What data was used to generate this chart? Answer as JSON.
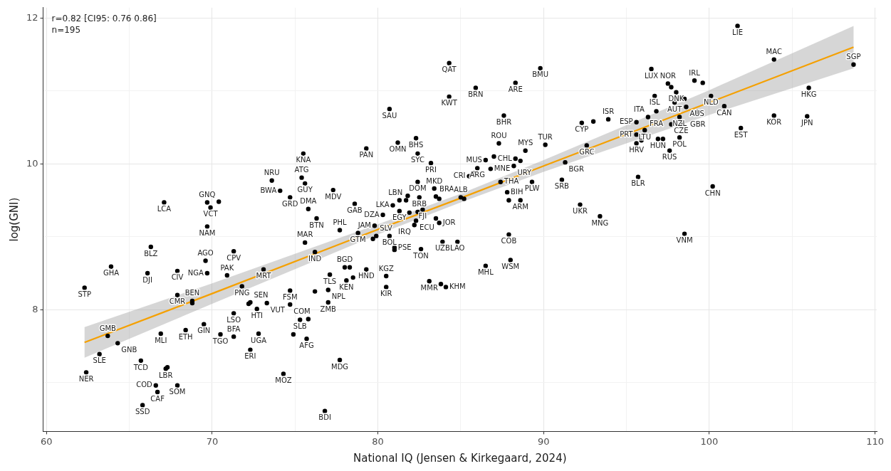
{
  "chart_data": {
    "type": "scatter",
    "xlabel": "National IQ (Jensen & Kirkegaard, 2024)",
    "ylabel": "log(GNI)",
    "annotations": [
      "r=0.82 [CI95: 0.76 0.86]",
      "n=195"
    ],
    "xlim": [
      59.8,
      110.1
    ],
    "ylim": [
      6.33,
      12.14
    ],
    "xticks": [
      60,
      {
        "value": 65,
        "label": null
      },
      70,
      {
        "value": 75,
        "label": null
      },
      80,
      {
        "value": 85,
        "label": null
      },
      90,
      {
        "value": 95,
        "label": null
      },
      100,
      {
        "value": 105,
        "label": null
      },
      110
    ],
    "yticks": [
      {
        "value": 7,
        "label": null
      },
      8,
      {
        "value": 9,
        "label": null
      },
      10,
      {
        "value": 11,
        "label": null
      },
      12
    ],
    "grid": true,
    "series": [
      {
        "marker": "circle",
        "color": "#000000",
        "x": [
          75.5,
          73.6,
          75.4,
          75.6,
          74.1,
          74.7,
          67.1,
          69.7,
          69.9,
          70.4,
          75.8,
          76.3,
          77.3,
          78.6,
          79.3,
          80.7,
          81.2,
          82.3,
          82.4,
          83.2,
          84.3,
          84.3,
          85.9,
          88.3,
          89.8,
          87.6,
          92.3,
          93.0,
          87.3,
          87.0,
          86.5,
          86.0,
          85.8,
          85.5,
          86.8,
          88.3,
          88.6,
          88.2,
          88.9,
          90.1,
          92.6,
          91.3,
          91.1,
          89.3,
          87.4,
          87.8,
          87.9,
          88.6,
          92.2,
          93.4,
          82.4,
          83.4,
          83.5,
          83.7,
          82.5,
          81.7,
          81.8,
          81.3,
          80.9,
          81.3,
          81.9,
          82.4,
          82.7,
          82.3,
          82.2,
          80.3,
          83.7,
          83.5,
          85.0,
          85.2,
          79.8,
          77.7,
          101.7,
          103.9,
          108.7,
          106.0,
          103.9,
          105.9,
          101.9,
          100.9,
          100.1,
          96.5,
          97.5,
          97.7,
          99.1,
          99.6,
          98.0,
          96.7,
          97.9,
          98.1,
          98.3,
          98.5,
          98.6,
          99.3,
          96.8,
          96.3,
          95.6,
          98.2,
          97.7,
          98.3,
          96.1,
          95.6,
          95.9,
          95.6,
          96.9,
          97.2,
          98.2,
          97.6,
          95.7,
          100.2,
          93.9,
          98.5,
          87.9,
          78.8,
          79.9,
          79.7,
          80.7,
          81.0,
          81.0,
          82.6,
          83.9,
          84.8,
          88.0,
          86.5,
          78.0,
          78.3,
          79.3,
          77.1,
          78.1,
          78.5,
          80.5,
          80.5,
          83.1,
          83.8,
          84.1,
          77.0,
          77.0,
          77.7,
          76.8,
          69.7,
          66.3,
          71.3,
          75.6,
          76.2,
          69.6,
          63.9,
          66.1,
          67.9,
          69.7,
          70.9,
          73.1,
          62.3,
          71.8,
          74.7,
          76.2,
          67.9,
          68.8,
          68.8,
          72.3,
          72.2,
          72.7,
          73.3,
          74.7,
          71.3,
          75.3,
          75.8,
          69.5,
          63.7,
          64.3,
          66.9,
          68.4,
          70.5,
          71.3,
          72.8,
          74.9,
          75.7,
          72.3,
          63.2,
          65.7,
          67.2,
          67.3,
          62.4,
          74.3,
          66.6,
          66.7,
          67.9,
          65.8
        ],
        "values": [
          10.14,
          9.77,
          9.81,
          9.73,
          9.63,
          9.54,
          9.47,
          9.47,
          9.4,
          9.48,
          9.38,
          9.25,
          9.64,
          9.45,
          10.21,
          10.75,
          10.29,
          10.35,
          10.14,
          10.01,
          11.38,
          10.92,
          11.04,
          11.11,
          11.31,
          10.66,
          10.56,
          10.58,
          10.28,
          10.1,
          10.05,
          9.94,
          9.87,
          9.83,
          9.93,
          10.07,
          10.04,
          9.97,
          10.18,
          10.26,
          10.25,
          10.02,
          9.78,
          9.75,
          9.75,
          9.61,
          9.5,
          9.5,
          9.44,
          9.28,
          9.75,
          9.66,
          9.55,
          9.52,
          9.54,
          9.5,
          9.56,
          9.5,
          9.43,
          9.35,
          9.33,
          9.34,
          9.37,
          9.22,
          9.16,
          9.3,
          9.19,
          9.25,
          9.54,
          9.52,
          9.15,
          9.09,
          11.89,
          11.43,
          11.36,
          11.04,
          10.66,
          10.65,
          10.49,
          10.79,
          10.93,
          11.3,
          11.1,
          11.05,
          11.14,
          11.11,
          10.98,
          10.93,
          10.84,
          10.89,
          10.91,
          10.89,
          10.78,
          10.71,
          10.72,
          10.64,
          10.57,
          10.64,
          10.54,
          10.54,
          10.46,
          10.4,
          10.32,
          10.28,
          10.34,
          10.34,
          10.36,
          10.18,
          9.82,
          9.69,
          10.61,
          9.04,
          9.03,
          9.05,
          9.01,
          8.97,
          9.01,
          8.85,
          8.82,
          8.83,
          8.93,
          8.93,
          8.68,
          8.6,
          8.58,
          8.58,
          8.55,
          8.48,
          8.4,
          8.44,
          8.46,
          8.31,
          8.39,
          8.35,
          8.31,
          8.27,
          8.1,
          7.31,
          6.61,
          9.14,
          8.86,
          8.8,
          8.92,
          8.79,
          8.67,
          8.59,
          8.5,
          8.53,
          8.5,
          8.47,
          8.55,
          8.3,
          8.32,
          8.26,
          8.25,
          8.2,
          8.12,
          8.09,
          8.1,
          8.08,
          8.01,
          8.09,
          8.07,
          7.95,
          7.86,
          7.87,
          7.8,
          7.64,
          7.54,
          7.67,
          7.72,
          7.66,
          7.63,
          7.67,
          7.66,
          7.6,
          7.45,
          7.39,
          7.3,
          7.19,
          7.21,
          7.14,
          7.12,
          6.96,
          6.87,
          6.96,
          6.69
        ],
        "value_labels": [
          "KNA",
          "NRU",
          "ATG",
          "GUY",
          "BWA",
          "GRD",
          "LCA",
          "GNQ",
          "VCT",
          null,
          "DMA",
          "BTN",
          "MDV",
          "GAB",
          "PAN",
          "SAU",
          "OMN",
          "BHS",
          "SYC",
          "PRI",
          "QAT",
          "KWT",
          "BRN",
          "ARE",
          "BMU",
          "BHR",
          "CYP",
          null,
          "ROU",
          null,
          "MUS",
          "ARG",
          null,
          "CRI",
          "MNE",
          "CHL",
          null,
          "URY",
          "MYS",
          "TUR",
          "GRC",
          "BGR",
          "SRB",
          "PLW",
          "THA",
          "BIH",
          null,
          "ARM",
          "UKR",
          "MNG",
          "DOM",
          "MKD",
          "BRA",
          null,
          "BRB",
          "LBN",
          null,
          null,
          "LKA",
          "EGY",
          null,
          null,
          "FJI",
          "ECU",
          "IRQ",
          "DZA",
          "JOR",
          null,
          "ALB",
          null,
          "JAM",
          "PHL",
          "LIE",
          "MAC",
          "SGP",
          "HKG",
          "KOR",
          "JPN",
          "EST",
          "CAN",
          "NLD",
          "LUX",
          "NOR",
          null,
          "IRL",
          null,
          "DNK",
          "ISL",
          "AUT",
          null,
          null,
          null,
          "AUS",
          "GBR",
          "FRA",
          "ITA",
          "ESP",
          "NZL",
          null,
          "CZE",
          "LTU",
          "PRT",
          null,
          "HRV",
          "HUN",
          null,
          "POL",
          "RUS",
          "BLR",
          "CHN",
          "ISR",
          "VNM",
          "COB",
          "GTM",
          "SLV",
          null,
          "BOL",
          "PSE",
          null,
          "TON",
          "UZB",
          "LAO",
          "WSM",
          "MHL",
          "BGD",
          null,
          "HND",
          "TLS",
          "KEN",
          null,
          "KGZ",
          "KIR",
          "MMR",
          null,
          "KHM",
          "NPL",
          "ZMB",
          "MDG",
          "BDI",
          "NAM",
          "BLZ",
          "CPV",
          "MAR",
          "IND",
          "AGO",
          "GHA",
          "DJI",
          "CIV",
          "NGA",
          "PAK",
          "MRT",
          "STP",
          "PNG",
          "FSM",
          null,
          "CMR",
          "BEN",
          null,
          "SEN",
          null,
          "HTI",
          "VUT",
          "COM",
          "LSO",
          "SLB",
          null,
          "GIN",
          "GMB",
          "GNB",
          "MLI",
          "ETH",
          "TGO",
          "BFA",
          "UGA",
          null,
          "AFG",
          "ERI",
          "SLE",
          "TCD",
          "LBR",
          null,
          "NER",
          "MOZ",
          "COD",
          "CAF",
          "SOM",
          "SSD"
        ]
      },
      {
        "type": "line",
        "marker": "none",
        "color": "#f5a000",
        "x": [
          62.3,
          70,
          80,
          85,
          90,
          100,
          108.7
        ],
        "values": [
          7.55,
          8.22,
          9.1,
          9.53,
          9.97,
          10.84,
          11.6
        ],
        "lower": [
          7.34,
          8.08,
          9.03,
          9.47,
          9.89,
          10.67,
          11.31
        ],
        "upper": [
          7.76,
          8.36,
          9.17,
          9.59,
          10.05,
          11.01,
          11.89
        ]
      }
    ]
  }
}
